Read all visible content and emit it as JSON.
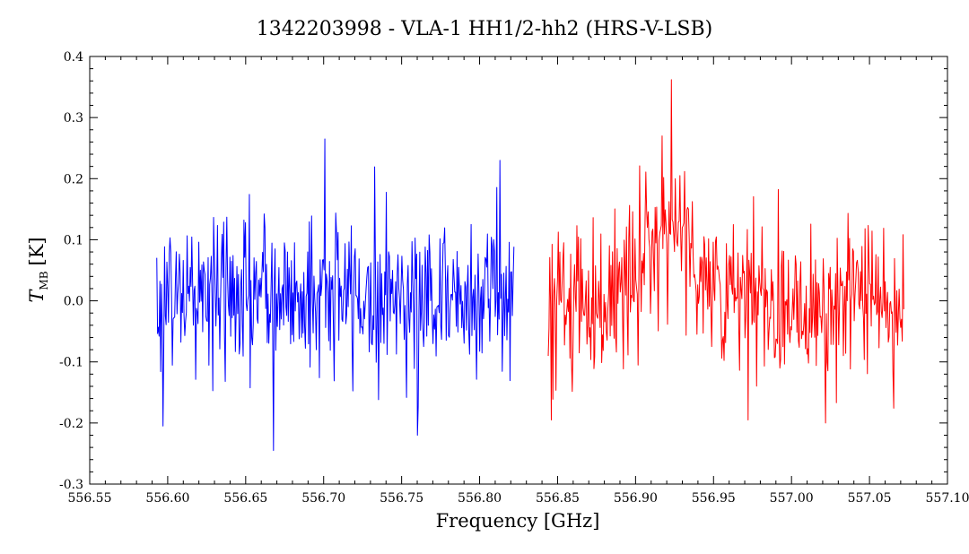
{
  "chart_data": {
    "type": "line",
    "title": "1342203998 - VLA-1 HH1/2-hh2 (HRS-V-LSB)",
    "xlabel": "Frequency [GHz]",
    "ylabel_main": "T",
    "ylabel_sub": "MB",
    "ylabel_unit": "[K]",
    "xlim": [
      556.55,
      557.1
    ],
    "ylim": [
      -0.3,
      0.4
    ],
    "xticks": [
      "556.55",
      "556.60",
      "556.65",
      "556.70",
      "556.75",
      "556.80",
      "556.85",
      "556.90",
      "556.95",
      "557.00",
      "557.05",
      "557.10"
    ],
    "xtick_values": [
      556.55,
      556.6,
      556.65,
      556.7,
      556.75,
      556.8,
      556.85,
      556.9,
      556.95,
      557.0,
      557.05,
      557.1
    ],
    "yticks": [
      "-0.3",
      "-0.2",
      "-0.1",
      "0.0",
      "0.1",
      "0.2",
      "0.3",
      "0.4"
    ],
    "ytick_values": [
      -0.3,
      -0.2,
      -0.1,
      0.0,
      0.1,
      0.2,
      0.3,
      0.4
    ],
    "series": [
      {
        "color": "#0000ff",
        "x_range": [
          556.593,
          556.822
        ],
        "baseline": 0.01,
        "noise_rms": 0.065,
        "points": 460,
        "extremes": [
          {
            "x": 556.701,
            "y": 0.265
          },
          {
            "x": 556.668,
            "y": -0.245
          },
          {
            "x": 556.76,
            "y": -0.22
          },
          {
            "x": 556.597,
            "y": -0.205
          },
          {
            "x": 556.813,
            "y": 0.23
          }
        ]
      },
      {
        "color": "#ff0000",
        "x_range": [
          556.844,
          557.072
        ],
        "baseline": 0.0,
        "noise_rms": 0.065,
        "points": 460,
        "emission_line": {
          "center": 556.922,
          "amplitude": 0.13,
          "fwhm": 0.035
        },
        "extremes": [
          {
            "x": 556.923,
            "y": 0.362
          },
          {
            "x": 556.917,
            "y": 0.27
          },
          {
            "x": 557.022,
            "y": -0.2
          },
          {
            "x": 556.972,
            "y": -0.195
          },
          {
            "x": 556.846,
            "y": -0.195
          }
        ]
      }
    ]
  }
}
